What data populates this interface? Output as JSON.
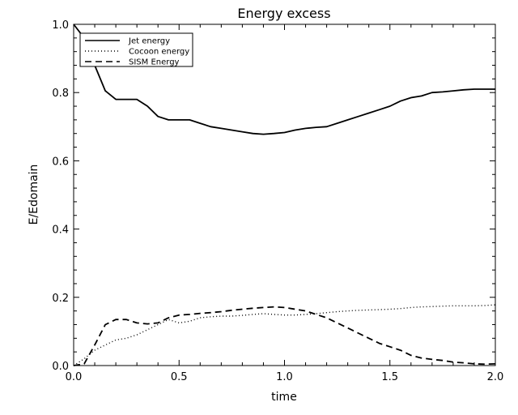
{
  "chart_data": {
    "type": "line",
    "title": "Energy excess",
    "xlabel": "time",
    "ylabel": "E/Edomain",
    "xlim": [
      0.0,
      2.0
    ],
    "ylim": [
      0.0,
      1.0
    ],
    "xticks": [
      "0.0",
      "0.5",
      "1.0",
      "1.5",
      "2.0"
    ],
    "yticks": [
      "0.0",
      "0.2",
      "0.4",
      "0.6",
      "0.8",
      "1.0"
    ],
    "legend_position": "top-left",
    "series": [
      {
        "name": "Jet energy",
        "style": "solid",
        "x": [
          0.0,
          0.05,
          0.1,
          0.15,
          0.2,
          0.25,
          0.3,
          0.35,
          0.4,
          0.45,
          0.5,
          0.55,
          0.6,
          0.65,
          0.7,
          0.75,
          0.8,
          0.85,
          0.9,
          0.95,
          1.0,
          1.05,
          1.1,
          1.15,
          1.2,
          1.25,
          1.3,
          1.35,
          1.4,
          1.45,
          1.5,
          1.55,
          1.6,
          1.65,
          1.7,
          1.75,
          1.8,
          1.85,
          1.9,
          1.95,
          2.0
        ],
        "values": [
          1.0,
          0.96,
          0.88,
          0.805,
          0.78,
          0.78,
          0.78,
          0.76,
          0.73,
          0.72,
          0.72,
          0.72,
          0.71,
          0.7,
          0.695,
          0.69,
          0.685,
          0.68,
          0.678,
          0.68,
          0.683,
          0.69,
          0.695,
          0.698,
          0.7,
          0.71,
          0.72,
          0.73,
          0.74,
          0.75,
          0.76,
          0.775,
          0.785,
          0.79,
          0.8,
          0.802,
          0.805,
          0.808,
          0.81,
          0.81,
          0.81
        ]
      },
      {
        "name": "Cocoon energy",
        "style": "dotted",
        "x": [
          0.0,
          0.05,
          0.1,
          0.15,
          0.2,
          0.25,
          0.3,
          0.35,
          0.4,
          0.45,
          0.5,
          0.55,
          0.6,
          0.65,
          0.7,
          0.75,
          0.8,
          0.85,
          0.9,
          0.95,
          1.0,
          1.05,
          1.1,
          1.15,
          1.2,
          1.25,
          1.3,
          1.35,
          1.4,
          1.45,
          1.5,
          1.55,
          1.6,
          1.65,
          1.7,
          1.75,
          1.8,
          1.85,
          1.9,
          1.95,
          2.0
        ],
        "values": [
          0.0,
          0.02,
          0.045,
          0.06,
          0.075,
          0.08,
          0.09,
          0.105,
          0.12,
          0.135,
          0.125,
          0.13,
          0.14,
          0.143,
          0.145,
          0.145,
          0.147,
          0.15,
          0.152,
          0.15,
          0.148,
          0.148,
          0.15,
          0.152,
          0.155,
          0.158,
          0.16,
          0.162,
          0.163,
          0.164,
          0.165,
          0.167,
          0.17,
          0.172,
          0.173,
          0.174,
          0.175,
          0.175,
          0.175,
          0.176,
          0.178
        ]
      },
      {
        "name": "SISM Energy",
        "style": "dashed",
        "x": [
          0.0,
          0.05,
          0.1,
          0.15,
          0.2,
          0.25,
          0.3,
          0.35,
          0.4,
          0.45,
          0.5,
          0.55,
          0.6,
          0.65,
          0.7,
          0.75,
          0.8,
          0.85,
          0.9,
          0.95,
          1.0,
          1.05,
          1.1,
          1.15,
          1.2,
          1.25,
          1.3,
          1.35,
          1.4,
          1.45,
          1.5,
          1.55,
          1.6,
          1.65,
          1.7,
          1.75,
          1.8,
          1.85,
          1.9,
          1.95,
          2.0
        ],
        "values": [
          0.0,
          0.005,
          0.06,
          0.12,
          0.135,
          0.135,
          0.125,
          0.122,
          0.125,
          0.14,
          0.148,
          0.15,
          0.153,
          0.155,
          0.158,
          0.162,
          0.165,
          0.168,
          0.17,
          0.172,
          0.17,
          0.165,
          0.16,
          0.15,
          0.14,
          0.125,
          0.11,
          0.095,
          0.08,
          0.065,
          0.055,
          0.045,
          0.03,
          0.022,
          0.018,
          0.015,
          0.01,
          0.008,
          0.005,
          0.004,
          0.005
        ]
      }
    ]
  }
}
